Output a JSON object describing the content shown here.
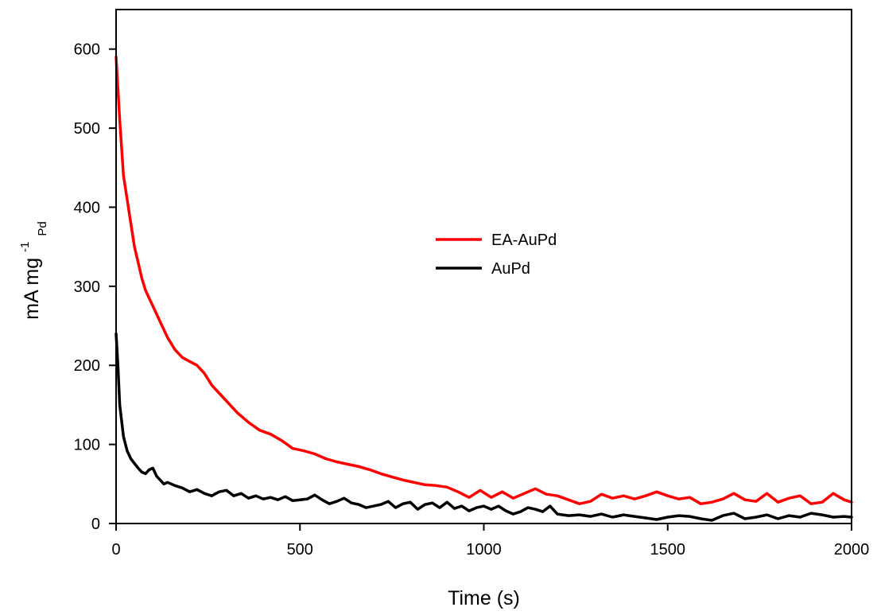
{
  "chart_data": {
    "type": "line",
    "xlabel": "Time (s)",
    "ylabel": {
      "main": "mA mg",
      "superscript": "-1",
      "subscript": "Pd"
    },
    "xlim": [
      0,
      2000
    ],
    "ylim": [
      0,
      650
    ],
    "xticks": [
      0,
      500,
      1000,
      1500,
      2000
    ],
    "yticks": [
      0,
      100,
      200,
      300,
      400,
      500,
      600
    ],
    "grid": false,
    "legend_position": "center-right",
    "series": [
      {
        "name": "EA-AuPd",
        "color": "#ff0000",
        "x": [
          0,
          10,
          20,
          30,
          40,
          50,
          60,
          70,
          80,
          90,
          100,
          120,
          140,
          160,
          180,
          200,
          220,
          240,
          260,
          280,
          300,
          330,
          360,
          390,
          420,
          450,
          480,
          510,
          540,
          570,
          600,
          630,
          660,
          690,
          720,
          750,
          780,
          810,
          840,
          870,
          900,
          930,
          960,
          990,
          1020,
          1050,
          1080,
          1110,
          1140,
          1170,
          1200,
          1230,
          1260,
          1290,
          1320,
          1350,
          1380,
          1410,
          1440,
          1470,
          1500,
          1530,
          1560,
          1590,
          1620,
          1650,
          1680,
          1710,
          1740,
          1770,
          1800,
          1830,
          1860,
          1890,
          1920,
          1950,
          1980,
          2000
        ],
        "y": [
          590,
          510,
          440,
          410,
          380,
          350,
          330,
          310,
          295,
          285,
          275,
          255,
          235,
          220,
          210,
          205,
          200,
          190,
          175,
          165,
          155,
          140,
          128,
          118,
          113,
          105,
          95,
          92,
          88,
          82,
          78,
          75,
          72,
          68,
          63,
          59,
          55,
          52,
          49,
          48,
          46,
          40,
          33,
          42,
          33,
          40,
          32,
          38,
          44,
          37,
          35,
          30,
          25,
          28,
          37,
          32,
          35,
          31,
          35,
          40,
          35,
          31,
          33,
          25,
          27,
          31,
          38,
          30,
          28,
          38,
          27,
          32,
          35,
          25,
          27,
          38,
          30,
          27
        ]
      },
      {
        "name": "AuPd",
        "color": "#000000",
        "x": [
          0,
          5,
          10,
          20,
          30,
          40,
          50,
          60,
          70,
          80,
          90,
          100,
          110,
          120,
          130,
          140,
          150,
          160,
          180,
          200,
          220,
          240,
          260,
          280,
          300,
          320,
          340,
          360,
          380,
          400,
          420,
          440,
          460,
          480,
          500,
          520,
          540,
          560,
          580,
          600,
          620,
          640,
          660,
          680,
          700,
          720,
          740,
          760,
          780,
          800,
          820,
          840,
          860,
          880,
          900,
          920,
          940,
          960,
          980,
          1000,
          1020,
          1040,
          1060,
          1080,
          1100,
          1120,
          1140,
          1160,
          1180,
          1200,
          1230,
          1260,
          1290,
          1320,
          1350,
          1380,
          1410,
          1440,
          1470,
          1500,
          1530,
          1560,
          1590,
          1620,
          1650,
          1680,
          1710,
          1740,
          1770,
          1800,
          1830,
          1860,
          1890,
          1920,
          1950,
          1980,
          2000
        ],
        "y": [
          240,
          200,
          150,
          110,
          92,
          82,
          76,
          70,
          65,
          63,
          68,
          70,
          60,
          55,
          50,
          52,
          50,
          48,
          45,
          40,
          43,
          38,
          35,
          40,
          42,
          35,
          38,
          32,
          35,
          31,
          33,
          30,
          34,
          29,
          30,
          31,
          36,
          30,
          25,
          28,
          32,
          26,
          24,
          20,
          22,
          24,
          28,
          20,
          25,
          27,
          18,
          24,
          26,
          20,
          27,
          19,
          22,
          16,
          20,
          22,
          18,
          22,
          16,
          12,
          15,
          20,
          18,
          15,
          22,
          12,
          10,
          11,
          9,
          12,
          8,
          11,
          9,
          7,
          5,
          8,
          10,
          9,
          6,
          4,
          10,
          13,
          6,
          8,
          11,
          6,
          10,
          8,
          13,
          11,
          8,
          9,
          8
        ]
      }
    ]
  }
}
